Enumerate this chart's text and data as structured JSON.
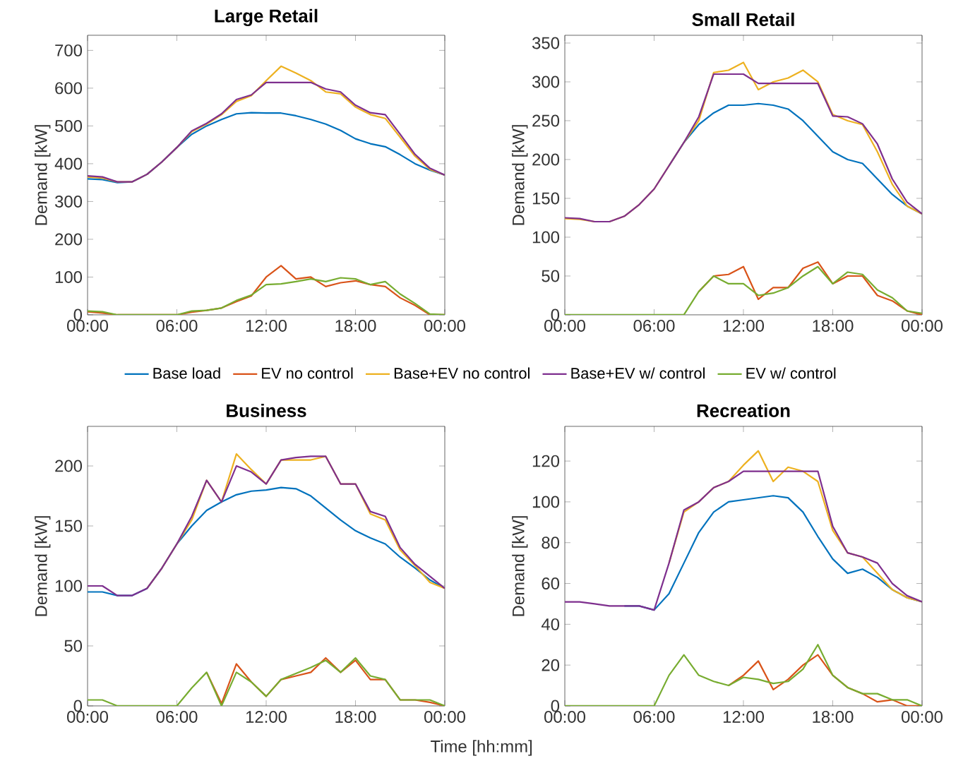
{
  "chart_data": [
    {
      "type": "line",
      "title": "Large Retail",
      "ylabel": "Demand [kW]",
      "legend": "bottom",
      "x": [
        0,
        1,
        2,
        3,
        4,
        5,
        6,
        7,
        8,
        9,
        10,
        11,
        12,
        13,
        14,
        15,
        16,
        17,
        18,
        19,
        20,
        21,
        22,
        23,
        24
      ],
      "xlim": [
        0,
        24
      ],
      "xticks": [
        {
          "value": 0,
          "label": "00:00"
        },
        {
          "value": 6,
          "label": "06:00"
        },
        {
          "value": 12,
          "label": "12:00"
        },
        {
          "value": 18,
          "label": "18:00"
        },
        {
          "value": 24,
          "label": "00:00"
        }
      ],
      "ylim": [
        0,
        740
      ],
      "yticks": [
        0,
        100,
        200,
        300,
        400,
        500,
        600,
        700
      ],
      "series": [
        {
          "name": "Base load",
          "color": "#0072bd",
          "values": [
            360,
            358,
            350,
            352,
            372,
            405,
            443,
            478,
            500,
            517,
            532,
            535,
            534,
            534,
            527,
            517,
            505,
            488,
            466,
            453,
            445,
            424,
            400,
            383,
            370
          ]
        },
        {
          "name": "EV no control",
          "color": "#d95319",
          "values": [
            8,
            5,
            0,
            0,
            0,
            0,
            0,
            7,
            12,
            18,
            35,
            50,
            100,
            130,
            95,
            100,
            75,
            85,
            90,
            80,
            75,
            45,
            25,
            0,
            0
          ]
        },
        {
          "name": "Base+EV no control",
          "color": "#edb120",
          "values": [
            365,
            362,
            352,
            352,
            372,
            405,
            443,
            485,
            505,
            530,
            565,
            580,
            620,
            658,
            640,
            620,
            590,
            585,
            550,
            530,
            520,
            470,
            420,
            385,
            370
          ]
        },
        {
          "name": "Base+EV w/ control",
          "color": "#7e2f8e",
          "values": [
            368,
            365,
            352,
            352,
            372,
            405,
            443,
            487,
            507,
            532,
            570,
            582,
            615,
            615,
            615,
            615,
            598,
            590,
            555,
            535,
            530,
            478,
            425,
            388,
            370
          ]
        },
        {
          "name": "EV w/ control",
          "color": "#77ac30",
          "values": [
            10,
            8,
            0,
            0,
            0,
            0,
            0,
            10,
            12,
            18,
            38,
            52,
            80,
            82,
            88,
            95,
            88,
            98,
            95,
            80,
            88,
            55,
            30,
            2,
            0
          ]
        }
      ]
    },
    {
      "type": "line",
      "title": "Small Retail",
      "ylabel": "Demand [kW]",
      "x": [
        0,
        1,
        2,
        3,
        4,
        5,
        6,
        7,
        8,
        9,
        10,
        11,
        12,
        13,
        14,
        15,
        16,
        17,
        18,
        19,
        20,
        21,
        22,
        23,
        24
      ],
      "xlim": [
        0,
        24
      ],
      "xticks": [
        {
          "value": 0,
          "label": "00:00"
        },
        {
          "value": 6,
          "label": "06:00"
        },
        {
          "value": 12,
          "label": "12:00"
        },
        {
          "value": 18,
          "label": "18:00"
        },
        {
          "value": 24,
          "label": "00:00"
        }
      ],
      "ylim": [
        0,
        360
      ],
      "yticks": [
        0,
        50,
        100,
        150,
        200,
        250,
        300,
        350
      ],
      "series": [
        {
          "color": "#0072bd",
          "values": [
            null,
            null,
            null,
            null,
            null,
            null,
            null,
            192,
            222,
            245,
            260,
            270,
            270,
            272,
            270,
            265,
            250,
            230,
            210,
            200,
            195,
            175,
            155,
            140,
            130
          ]
        },
        {
          "color": "#d95319",
          "values": [
            null,
            null,
            null,
            null,
            null,
            null,
            null,
            null,
            null,
            30,
            50,
            52,
            62,
            20,
            35,
            35,
            60,
            68,
            40,
            50,
            50,
            25,
            18,
            5,
            0
          ]
        },
        {
          "color": "#edb120",
          "values": [
            124,
            123,
            120,
            120,
            127,
            142,
            162,
            192,
            222,
            250,
            312,
            315,
            325,
            290,
            300,
            305,
            315,
            300,
            258,
            250,
            245,
            210,
            168,
            140,
            130
          ]
        },
        {
          "color": "#7e2f8e",
          "values": [
            125,
            124,
            120,
            120,
            127,
            142,
            162,
            192,
            222,
            255,
            310,
            310,
            310,
            298,
            298,
            298,
            298,
            298,
            256,
            255,
            246,
            220,
            175,
            145,
            130
          ]
        },
        {
          "color": "#77ac30",
          "values": [
            0,
            0,
            0,
            0,
            0,
            0,
            0,
            0,
            0,
            30,
            50,
            40,
            40,
            25,
            28,
            35,
            50,
            62,
            40,
            55,
            52,
            32,
            22,
            5,
            2
          ]
        }
      ]
    },
    {
      "type": "line",
      "title": "Business",
      "ylabel": "Demand [kW]",
      "xlabel": "Time [hh:mm]",
      "x": [
        0,
        1,
        2,
        3,
        4,
        5,
        6,
        7,
        8,
        9,
        10,
        11,
        12,
        13,
        14,
        15,
        16,
        17,
        18,
        19,
        20,
        21,
        22,
        23,
        24
      ],
      "xlim": [
        0,
        24
      ],
      "xticks": [
        {
          "value": 0,
          "label": "00:00"
        },
        {
          "value": 6,
          "label": "06:00"
        },
        {
          "value": 12,
          "label": "12:00"
        },
        {
          "value": 18,
          "label": "18:00"
        },
        {
          "value": 24,
          "label": "00:00"
        }
      ],
      "ylim": [
        0,
        233
      ],
      "yticks": [
        0,
        50,
        100,
        150,
        200
      ],
      "series": [
        {
          "color": "#0072bd",
          "values": [
            95,
            95,
            92,
            92,
            98,
            115,
            135,
            150,
            163,
            170,
            176,
            179,
            180,
            182,
            181,
            175,
            165,
            155,
            146,
            140,
            135,
            124,
            115,
            105,
            98
          ]
        },
        {
          "color": "#d95319",
          "values": [
            null,
            null,
            null,
            null,
            null,
            null,
            null,
            null,
            28,
            2,
            35,
            20,
            8,
            22,
            25,
            28,
            40,
            28,
            38,
            22,
            22,
            5,
            5,
            3,
            0
          ]
        },
        {
          "color": "#edb120",
          "values": [
            null,
            null,
            null,
            null,
            98,
            115,
            135,
            155,
            188,
            170,
            210,
            197,
            185,
            205,
            205,
            205,
            208,
            185,
            185,
            160,
            155,
            130,
            117,
            103,
            98
          ]
        },
        {
          "color": "#7e2f8e",
          "values": [
            100,
            100,
            92,
            92,
            98,
            115,
            135,
            158,
            188,
            170,
            200,
            195,
            185,
            205,
            207,
            208,
            208,
            185,
            185,
            162,
            158,
            132,
            118,
            108,
            98
          ]
        },
        {
          "color": "#77ac30",
          "values": [
            5,
            5,
            0,
            0,
            0,
            0,
            0,
            15,
            28,
            0,
            28,
            20,
            8,
            22,
            27,
            32,
            38,
            28,
            40,
            25,
            22,
            5,
            5,
            5,
            0
          ]
        }
      ]
    },
    {
      "type": "line",
      "title": "Recreation",
      "ylabel": "Demand [kW]",
      "x": [
        0,
        1,
        2,
        3,
        4,
        5,
        6,
        7,
        8,
        9,
        10,
        11,
        12,
        13,
        14,
        15,
        16,
        17,
        18,
        19,
        20,
        21,
        22,
        23,
        24
      ],
      "xlim": [
        0,
        24
      ],
      "xticks": [
        {
          "value": 0,
          "label": "00:00"
        },
        {
          "value": 6,
          "label": "06:00"
        },
        {
          "value": 12,
          "label": "12:00"
        },
        {
          "value": 18,
          "label": "18:00"
        },
        {
          "value": 24,
          "label": "00:00"
        }
      ],
      "ylim": [
        0,
        137
      ],
      "yticks": [
        0,
        20,
        40,
        60,
        80,
        100,
        120
      ],
      "series": [
        {
          "color": "#0072bd",
          "values": [
            null,
            null,
            null,
            null,
            49,
            49,
            47,
            55,
            70,
            85,
            95,
            100,
            101,
            102,
            103,
            102,
            95,
            83,
            72,
            65,
            67,
            63,
            57,
            53,
            51
          ]
        },
        {
          "color": "#d95319",
          "values": [
            null,
            null,
            null,
            null,
            null,
            null,
            null,
            null,
            null,
            null,
            null,
            10,
            15,
            22,
            8,
            13,
            20,
            25,
            15,
            9,
            6,
            2,
            3,
            0,
            0
          ]
        },
        {
          "color": "#edb120",
          "values": [
            null,
            null,
            null,
            null,
            null,
            null,
            null,
            70,
            95,
            100,
            107,
            110,
            118,
            125,
            110,
            117,
            115,
            110,
            86,
            75,
            73,
            65,
            57,
            53,
            51
          ]
        },
        {
          "color": "#7e2f8e",
          "values": [
            51,
            51,
            50,
            49,
            49,
            49,
            47,
            70,
            96,
            100,
            107,
            110,
            115,
            115,
            115,
            115,
            115,
            115,
            88,
            75,
            73,
            70,
            60,
            54,
            51
          ]
        },
        {
          "color": "#77ac30",
          "values": [
            0,
            0,
            0,
            0,
            0,
            0,
            0,
            15,
            25,
            15,
            12,
            10,
            14,
            13,
            11,
            12,
            18,
            30,
            15,
            9,
            6,
            6,
            3,
            3,
            0
          ]
        }
      ]
    }
  ]
}
